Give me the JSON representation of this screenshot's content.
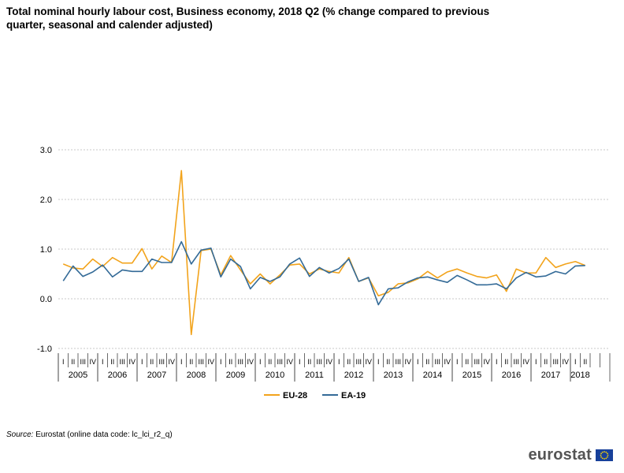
{
  "title": "Total nominal hourly labour cost, Business economy, 2018 Q2 (% change compared to previous quarter, seasonal and calender adjusted)",
  "source_label": "Source:",
  "source_text": "Eurostat (online data code: lc_lci_r2_q)",
  "logo_text": "eurostat",
  "colors": {
    "eu28": "#f2a31b",
    "ea19": "#336a97",
    "grid": "#c8c8c8",
    "axis": "#444444"
  },
  "chart_data": {
    "type": "line",
    "title": "Total nominal hourly labour cost, Business economy, 2018 Q2 (% change compared to previous quarter, seasonal and calender adjusted)",
    "xlabel": "",
    "ylabel": "",
    "ylim": [
      -1.0,
      3.0
    ],
    "yticks": [
      -1.0,
      0.0,
      1.0,
      2.0,
      3.0
    ],
    "ytick_labels": [
      "-1.0",
      "0.0",
      "1.0",
      "2.0",
      "3.0"
    ],
    "grid": true,
    "legend_position": "bottom",
    "quarter_labels": [
      "I",
      "II",
      "III",
      "IV"
    ],
    "years": [
      "2005",
      "2006",
      "2007",
      "2008",
      "2009",
      "2010",
      "2011",
      "2012",
      "2013",
      "2014",
      "2015",
      "2016",
      "2017",
      "2018"
    ],
    "categories": [
      "2005Q1",
      "2005Q2",
      "2005Q3",
      "2005Q4",
      "2006Q1",
      "2006Q2",
      "2006Q3",
      "2006Q4",
      "2007Q1",
      "2007Q2",
      "2007Q3",
      "2007Q4",
      "2008Q1",
      "2008Q2",
      "2008Q3",
      "2008Q4",
      "2009Q1",
      "2009Q2",
      "2009Q3",
      "2009Q4",
      "2010Q1",
      "2010Q2",
      "2010Q3",
      "2010Q4",
      "2011Q1",
      "2011Q2",
      "2011Q3",
      "2011Q4",
      "2012Q1",
      "2012Q2",
      "2012Q3",
      "2012Q4",
      "2013Q1",
      "2013Q2",
      "2013Q3",
      "2013Q4",
      "2014Q1",
      "2014Q2",
      "2014Q3",
      "2014Q4",
      "2015Q1",
      "2015Q2",
      "2015Q3",
      "2015Q4",
      "2016Q1",
      "2016Q2",
      "2016Q3",
      "2016Q4",
      "2017Q1",
      "2017Q2",
      "2017Q3",
      "2017Q4",
      "2018Q1",
      "2018Q2"
    ],
    "series": [
      {
        "name": "EU-28",
        "color": "#f2a31b",
        "values": [
          0.7,
          0.62,
          0.6,
          0.8,
          0.65,
          0.83,
          0.72,
          0.72,
          1.01,
          0.6,
          0.86,
          0.73,
          2.58,
          -0.72,
          0.97,
          1.0,
          0.48,
          0.87,
          0.58,
          0.3,
          0.5,
          0.3,
          0.48,
          0.68,
          0.7,
          0.5,
          0.6,
          0.55,
          0.52,
          0.83,
          0.35,
          0.42,
          0.06,
          0.13,
          0.3,
          0.32,
          0.4,
          0.55,
          0.42,
          0.54,
          0.6,
          0.52,
          0.45,
          0.42,
          0.48,
          0.15,
          0.6,
          0.52,
          0.52,
          0.83,
          0.63,
          0.7,
          0.75,
          0.67
        ]
      },
      {
        "name": "EA-19",
        "color": "#336a97",
        "values": [
          0.36,
          0.66,
          0.45,
          0.54,
          0.68,
          0.44,
          0.58,
          0.55,
          0.55,
          0.8,
          0.73,
          0.73,
          1.15,
          0.7,
          0.98,
          1.02,
          0.44,
          0.8,
          0.65,
          0.2,
          0.43,
          0.35,
          0.44,
          0.7,
          0.82,
          0.45,
          0.63,
          0.52,
          0.61,
          0.8,
          0.35,
          0.43,
          -0.12,
          0.2,
          0.22,
          0.34,
          0.42,
          0.44,
          0.38,
          0.33,
          0.47,
          0.38,
          0.28,
          0.28,
          0.3,
          0.2,
          0.42,
          0.53,
          0.44,
          0.46,
          0.55,
          0.5,
          0.66,
          0.67
        ]
      }
    ]
  }
}
